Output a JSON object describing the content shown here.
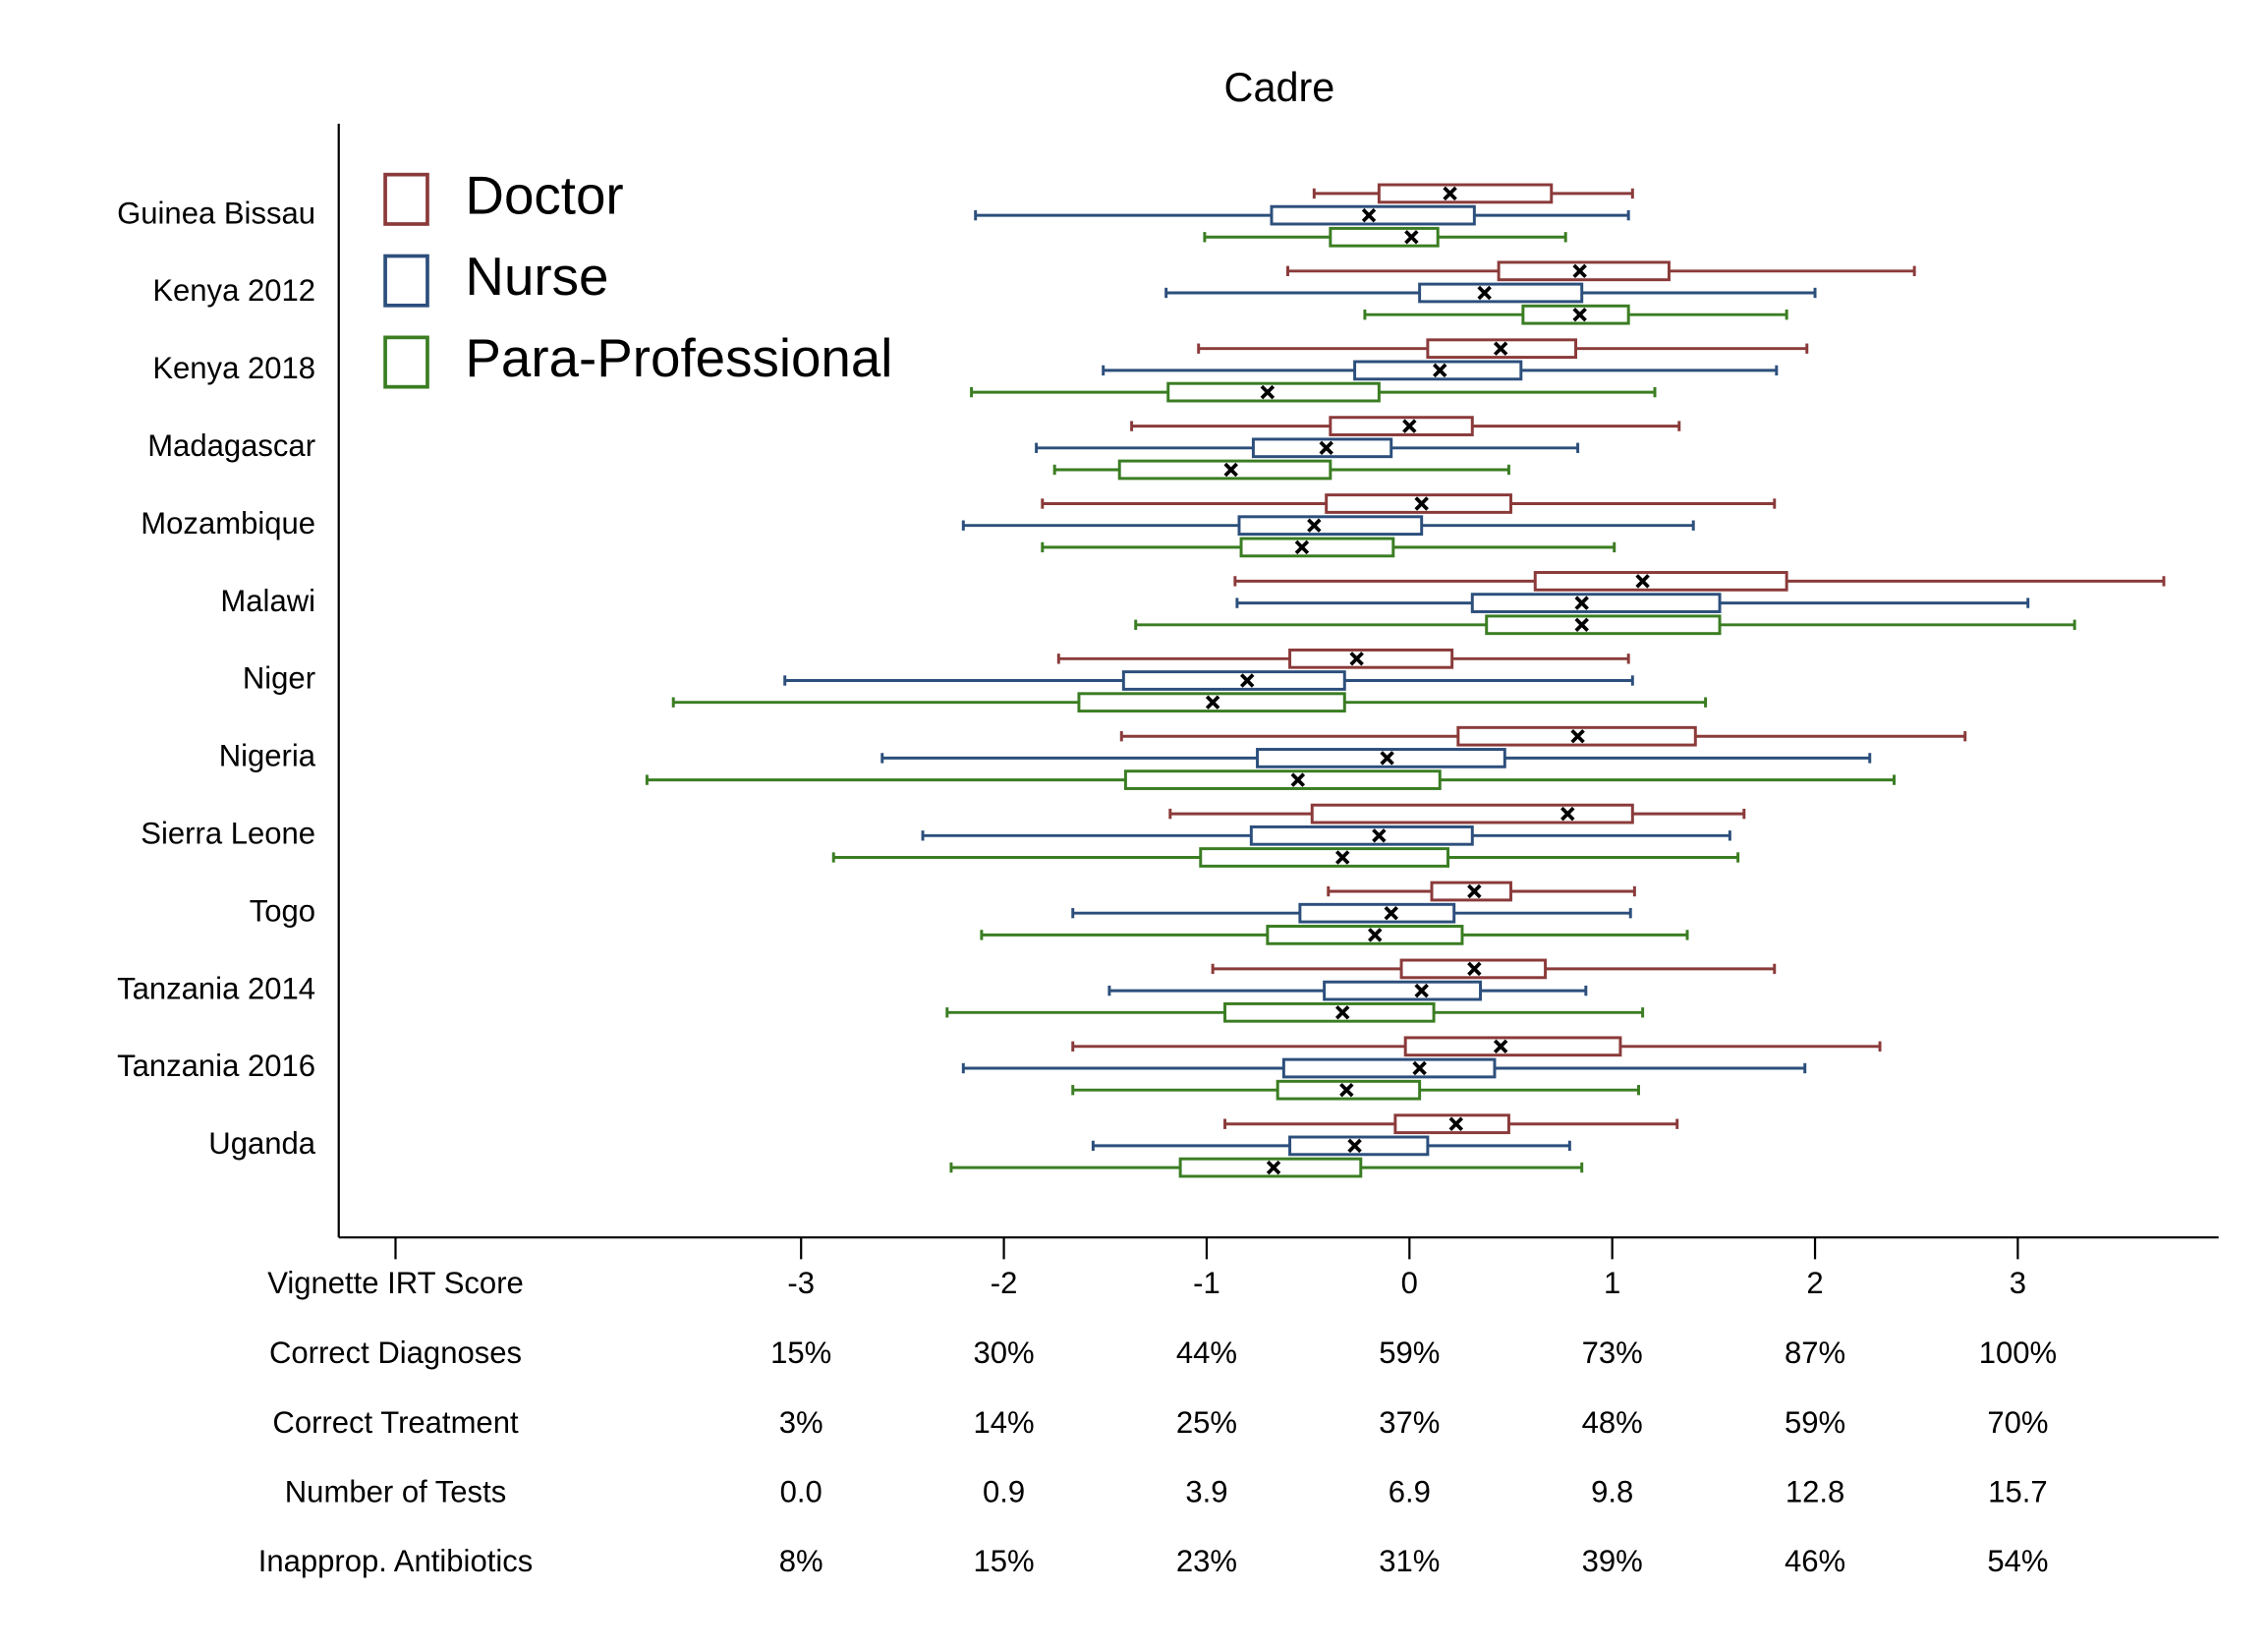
{
  "chart_data": {
    "type": "boxplot",
    "title": "Cadre",
    "categories": [
      "Guinea Bissau",
      "Kenya 2012",
      "Kenya 2018",
      "Madagascar",
      "Mozambique",
      "Malawi",
      "Niger",
      "Nigeria",
      "Sierra Leone",
      "Togo",
      "Tanzania 2014",
      "Tanzania 2016",
      "Uganda"
    ],
    "xlim": [
      -5.28,
      3.99
    ],
    "xticks": [
      {
        "value": -5,
        "label": "Vignette IRT Score"
      },
      -3,
      -2,
      -1,
      0,
      1,
      2,
      3
    ],
    "legend": "top-left",
    "series": [
      {
        "name": "Doctor",
        "color": "#8b3a3a",
        "low": [
          -0.47,
          -0.6,
          -1.04,
          -1.37,
          -1.81,
          -0.86,
          -1.73,
          -1.42,
          -1.18,
          -0.4,
          -0.97,
          -1.66,
          -0.91
        ],
        "q1": [
          -0.15,
          0.44,
          0.09,
          -0.39,
          -0.41,
          0.62,
          -0.59,
          0.24,
          -0.48,
          0.11,
          -0.04,
          -0.02,
          -0.07
        ],
        "median": [
          0.2,
          0.84,
          0.45,
          0.0,
          0.06,
          1.15,
          -0.26,
          0.83,
          0.78,
          0.32,
          0.32,
          0.45,
          0.23
        ],
        "q3": [
          0.7,
          1.28,
          0.82,
          0.31,
          0.5,
          1.86,
          0.21,
          1.41,
          1.1,
          0.5,
          0.67,
          1.04,
          0.49
        ],
        "high": [
          1.1,
          2.49,
          1.96,
          1.33,
          1.8,
          3.72,
          1.08,
          2.74,
          1.65,
          1.11,
          1.8,
          2.32,
          1.32
        ]
      },
      {
        "name": "Nurse",
        "color": "#2c4f7c",
        "low": [
          -2.14,
          -1.2,
          -1.51,
          -1.84,
          -2.2,
          -0.85,
          -3.08,
          -2.6,
          -2.4,
          -1.66,
          -1.48,
          -2.2,
          -1.56
        ],
        "q1": [
          -0.68,
          0.05,
          -0.27,
          -0.77,
          -0.84,
          0.31,
          -1.41,
          -0.75,
          -0.78,
          -0.54,
          -0.42,
          -0.62,
          -0.59
        ],
        "median": [
          -0.2,
          0.37,
          0.15,
          -0.41,
          -0.47,
          0.85,
          -0.8,
          -0.11,
          -0.15,
          -0.09,
          0.06,
          0.05,
          -0.27
        ],
        "q3": [
          0.32,
          0.85,
          0.55,
          -0.09,
          0.06,
          1.53,
          -0.32,
          0.47,
          0.31,
          0.22,
          0.35,
          0.42,
          0.09
        ],
        "high": [
          1.08,
          2.0,
          1.81,
          0.83,
          1.4,
          3.05,
          1.1,
          2.27,
          1.58,
          1.09,
          0.87,
          1.95,
          0.79
        ]
      },
      {
        "name": "Para-Professional",
        "color": "#3a7d22",
        "low": [
          -1.01,
          -0.22,
          -2.16,
          -1.75,
          -1.81,
          -1.35,
          -3.63,
          -3.76,
          -2.84,
          -2.11,
          -2.28,
          -1.66,
          -2.26
        ],
        "q1": [
          -0.39,
          0.56,
          -1.19,
          -1.43,
          -0.83,
          0.38,
          -1.63,
          -1.4,
          -1.03,
          -0.7,
          -0.91,
          -0.65,
          -1.13
        ],
        "median": [
          0.01,
          0.84,
          -0.7,
          -0.88,
          -0.53,
          0.85,
          -0.97,
          -0.55,
          -0.33,
          -0.17,
          -0.33,
          -0.31,
          -0.67
        ],
        "q3": [
          0.14,
          1.08,
          -0.15,
          -0.39,
          -0.08,
          1.53,
          -0.32,
          0.15,
          0.19,
          0.26,
          0.12,
          0.05,
          -0.24
        ],
        "high": [
          0.77,
          1.86,
          1.21,
          0.49,
          1.01,
          3.28,
          1.46,
          2.39,
          1.62,
          1.37,
          1.15,
          1.13,
          0.85
        ]
      }
    ],
    "tick_table": [
      {
        "name": "Correct Diagnoses",
        "labels": [
          "15%",
          "30%",
          "44%",
          "59%",
          "73%",
          "87%",
          "100%"
        ]
      },
      {
        "name": "Correct Treatment",
        "labels": [
          "3%",
          "14%",
          "25%",
          "37%",
          "48%",
          "59%",
          "70%"
        ]
      },
      {
        "name": "Number of Tests",
        "labels": [
          "0.0",
          "0.9",
          "3.9",
          "6.9",
          "9.8",
          "12.8",
          "15.7"
        ]
      },
      {
        "name": "Inapprop. Antibiotics",
        "labels": [
          "8%",
          "15%",
          "23%",
          "31%",
          "39%",
          "46%",
          "54%"
        ]
      }
    ]
  }
}
